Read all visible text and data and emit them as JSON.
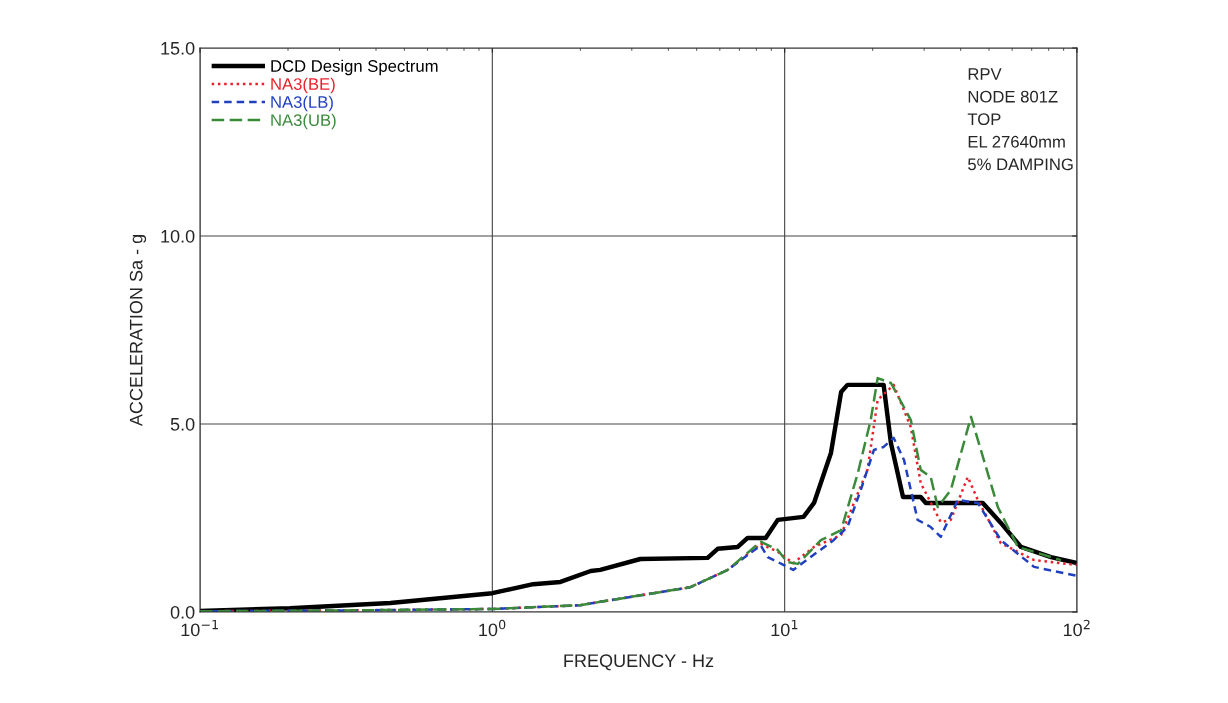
{
  "chart_data": {
    "type": "line",
    "xlabel": "FREQUENCY - Hz",
    "ylabel": "ACCELERATION Sa - g",
    "log": "x",
    "xlim": [
      0.1,
      100
    ],
    "xticks": [
      {
        "value": 0.1,
        "label": "10$^{−1}$"
      },
      {
        "value": 1,
        "label": "10$^{0}$"
      },
      {
        "value": 10,
        "label": "10$^{1}$"
      },
      {
        "value": 100,
        "label": "10$^{2}$"
      }
    ],
    "ylim": [
      0,
      15
    ],
    "yticks": [
      {
        "value": 0,
        "label": "0.0"
      },
      {
        "value": 5,
        "label": "5.0"
      },
      {
        "value": 10,
        "label": "10.0"
      },
      {
        "value": 15,
        "label": "15.0"
      }
    ],
    "grid": true,
    "legend": "top left",
    "annotations": [
      "RPV",
      "NODE 801Z",
      "TOP",
      "EL 27640mm",
      "5% DAMPING"
    ],
    "series": [
      {
        "name": "DCD Design Spectrum",
        "color": "#000000",
        "line_style": "solid",
        "x": [
          0.1,
          0.203,
          0.448,
          1.0,
          1.38,
          1.71,
          2.17,
          2.34,
          3.21,
          5.45,
          5.9,
          6.91,
          7.47,
          8.61,
          9.47,
          11.6,
          12.6,
          14.4,
          15.6,
          16.4,
          21.8,
          23.1,
          25.4,
          29.2,
          30.4,
          47.6,
          54.9,
          64.3,
          81.5,
          100
        ],
        "values": [
          0.03,
          0.1,
          0.24,
          0.5,
          0.74,
          0.8,
          1.09,
          1.12,
          1.41,
          1.44,
          1.68,
          1.73,
          1.97,
          1.97,
          2.45,
          2.53,
          2.9,
          4.23,
          5.85,
          6.04,
          6.04,
          4.49,
          3.06,
          3.06,
          2.9,
          2.9,
          2.37,
          1.73,
          1.46,
          1.3
        ]
      },
      {
        "name": "NA3(BE)",
        "color": "#e8202a",
        "line_style": "dotted",
        "x": [
          0.1,
          0.3,
          1.0,
          2.0,
          2.34,
          4.76,
          6.38,
          8.28,
          9.47,
          10.7,
          12.6,
          15.6,
          17.8,
          19.2,
          20.8,
          23.6,
          27.0,
          29.2,
          34.2,
          37.0,
          42.3,
          45.8,
          54.9,
          71.3,
          100
        ],
        "values": [
          0.02,
          0.04,
          0.08,
          0.18,
          0.27,
          0.66,
          1.12,
          1.81,
          1.6,
          1.3,
          1.73,
          2.05,
          3.16,
          3.78,
          5.64,
          6.04,
          4.92,
          3.43,
          2.39,
          2.45,
          3.59,
          2.98,
          1.83,
          1.38,
          1.25
        ]
      },
      {
        "name": "NA3(LB)",
        "color": "#2040c0",
        "line_style": "dashed",
        "x": [
          0.1,
          0.3,
          1.0,
          2.0,
          2.34,
          4.76,
          6.38,
          8.28,
          8.75,
          9.47,
          10.7,
          14.7,
          16.4,
          18.2,
          20.2,
          21.8,
          23.6,
          25.6,
          28.5,
          31.6,
          34.2,
          39.1,
          45.8,
          54.9,
          71.3,
          100
        ],
        "values": [
          0.02,
          0.04,
          0.08,
          0.18,
          0.27,
          0.66,
          1.12,
          1.77,
          1.46,
          1.33,
          1.12,
          1.91,
          2.26,
          3.24,
          4.31,
          4.39,
          4.63,
          4.04,
          2.45,
          2.26,
          2.0,
          2.98,
          2.9,
          1.91,
          1.2,
          0.96
        ]
      },
      {
        "name": "NA3(UB)",
        "color": "#3a8a3a",
        "line_style": "longdash",
        "x": [
          0.1,
          0.3,
          1.0,
          2.0,
          2.34,
          4.76,
          6.38,
          8.28,
          9.47,
          10.2,
          11.1,
          13.3,
          15.6,
          17.8,
          19.7,
          20.8,
          23.1,
          27.0,
          29.2,
          31.6,
          33.4,
          37.0,
          43.4,
          53.6,
          62.8,
          88.1
        ],
        "values": [
          0.02,
          0.04,
          0.08,
          0.18,
          0.27,
          0.66,
          1.12,
          1.87,
          1.65,
          1.33,
          1.28,
          1.91,
          2.18,
          3.7,
          5.11,
          6.22,
          6.09,
          5.11,
          3.78,
          3.59,
          2.79,
          3.24,
          5.19,
          2.79,
          1.73,
          1.38
        ]
      }
    ]
  }
}
